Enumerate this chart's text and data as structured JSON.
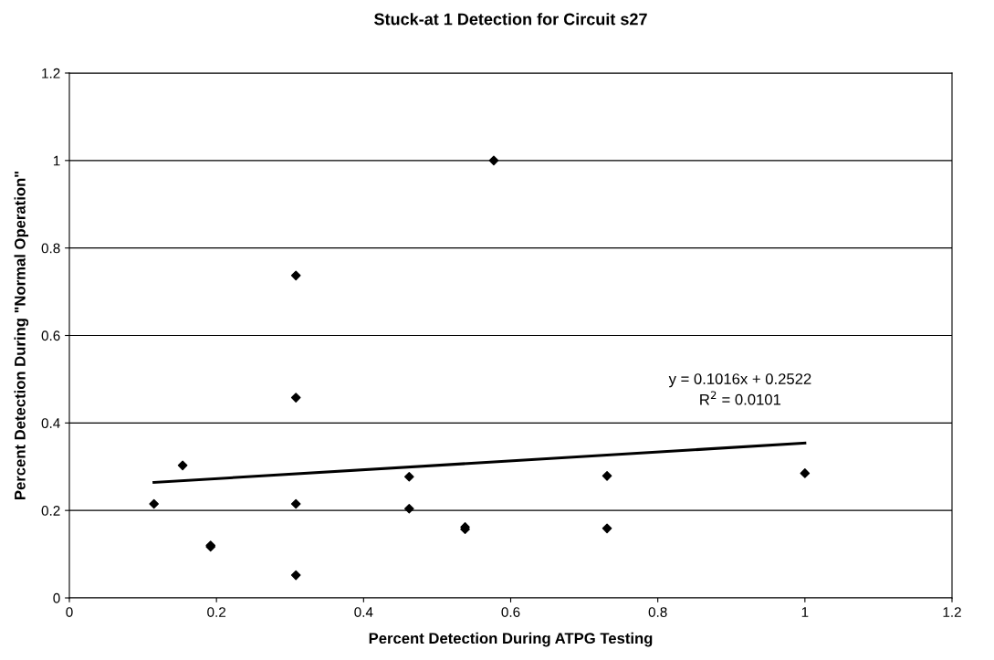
{
  "chart_data": {
    "type": "scatter",
    "title": "Stuck-at 1 Detection for Circuit s27",
    "xlabel": "Percent Detection During ATPG Testing",
    "ylabel": "Percent Detection During \"Normal Operation\"",
    "series": [
      {
        "color": "#000000",
        "marker": "diamond",
        "x": [
          0.115,
          0.154,
          0.192,
          0.192,
          0.308,
          0.308,
          0.308,
          0.308,
          0.462,
          0.462,
          0.538,
          0.538,
          0.577,
          0.731,
          0.731,
          1.0
        ],
        "values": [
          0.215,
          0.303,
          0.117,
          0.12,
          0.737,
          0.458,
          0.215,
          0.052,
          0.277,
          0.204,
          0.157,
          0.162,
          1.0,
          0.279,
          0.159,
          0.285
        ]
      },
      {
        "type": "line",
        "color": "#000000",
        "marker": "none",
        "line_style": "solid",
        "x": [
          0.115,
          1.0
        ],
        "values": [
          0.264,
          0.354
        ]
      }
    ],
    "annotations": [
      "y = 0.1016x + 0.2522\nR$^{2}$ = 0.0101"
    ],
    "xlim": [
      0,
      1.2
    ],
    "xticks": [
      0,
      0.2,
      0.4,
      0.6,
      0.8,
      1,
      1.2
    ],
    "ylim": [
      0,
      1.2
    ],
    "yticks": [
      0,
      0.2,
      0.4,
      0.6,
      0.8,
      1,
      1.2
    ],
    "grid": "y",
    "legend": false
  }
}
